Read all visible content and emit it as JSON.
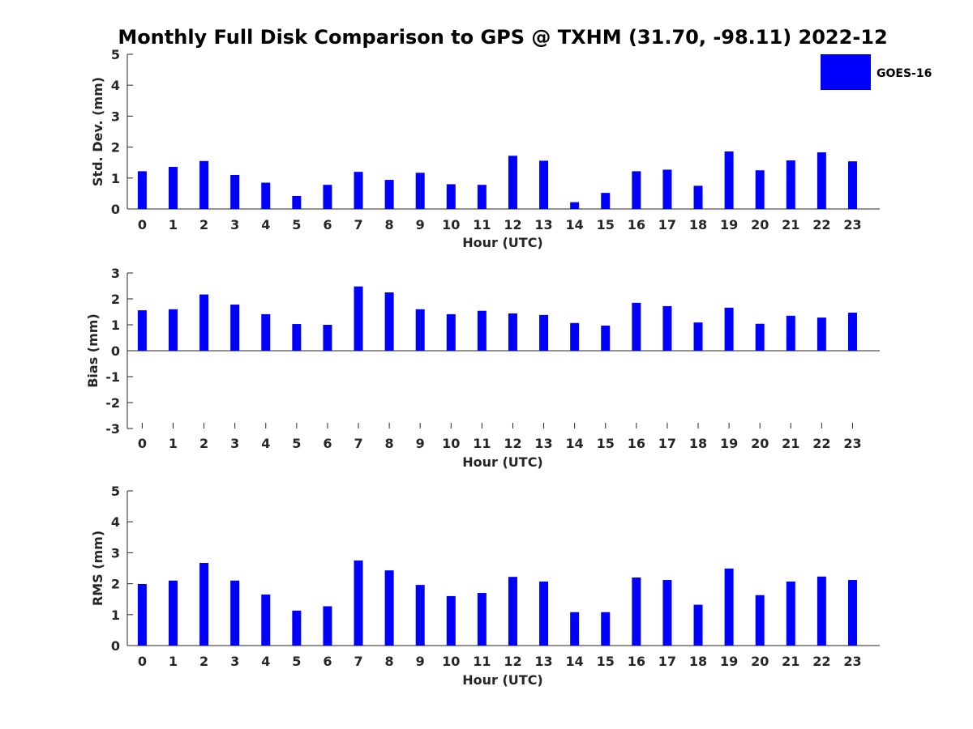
{
  "title": "Monthly Full Disk Comparison to GPS @ TXHM (31.70, -98.11) 2022-12",
  "legend": {
    "label": "GOES-16",
    "color": "#0000ff",
    "placement": "top-right"
  },
  "chart_data": [
    {
      "type": "bar",
      "title": "",
      "xlabel": "Hour (UTC)",
      "ylabel": "Std. Dev. (mm)",
      "ylim": [
        0,
        5
      ],
      "yticks": [
        "0",
        "1",
        "2",
        "3",
        "4",
        "5"
      ],
      "categories": [
        "0",
        "1",
        "2",
        "3",
        "4",
        "5",
        "6",
        "7",
        "8",
        "9",
        "10",
        "11",
        "12",
        "13",
        "14",
        "15",
        "16",
        "17",
        "18",
        "19",
        "20",
        "21",
        "22",
        "23"
      ],
      "series": [
        {
          "name": "GOES-16",
          "color": "#0000ff",
          "values": [
            1.22,
            1.36,
            1.55,
            1.1,
            0.85,
            0.42,
            0.78,
            1.2,
            0.94,
            1.17,
            0.8,
            0.78,
            1.72,
            1.56,
            0.22,
            0.52,
            1.22,
            1.27,
            0.75,
            1.86,
            1.25,
            1.57,
            1.83,
            1.54
          ]
        }
      ],
      "grid": false
    },
    {
      "type": "bar",
      "title": "",
      "xlabel": "Hour (UTC)",
      "ylabel": "Bias (mm)",
      "ylim": [
        -3,
        3
      ],
      "yticks": [
        "-3",
        "-2",
        "-1",
        "0",
        "1",
        "2",
        "3"
      ],
      "categories": [
        "0",
        "1",
        "2",
        "3",
        "4",
        "5",
        "6",
        "7",
        "8",
        "9",
        "10",
        "11",
        "12",
        "13",
        "14",
        "15",
        "16",
        "17",
        "18",
        "19",
        "20",
        "21",
        "22",
        "23"
      ],
      "series": [
        {
          "name": "GOES-16",
          "color": "#0000ff",
          "values": [
            1.56,
            1.6,
            2.17,
            1.78,
            1.41,
            1.03,
            1.0,
            2.48,
            2.25,
            1.6,
            1.41,
            1.54,
            1.44,
            1.38,
            1.07,
            0.97,
            1.85,
            1.72,
            1.09,
            1.66,
            1.04,
            1.35,
            1.28,
            1.47
          ]
        }
      ],
      "grid": false
    },
    {
      "type": "bar",
      "title": "",
      "xlabel": "Hour (UTC)",
      "ylabel": "RMS (mm)",
      "ylim": [
        0,
        5
      ],
      "yticks": [
        "0",
        "1",
        "2",
        "3",
        "4",
        "5"
      ],
      "categories": [
        "0",
        "1",
        "2",
        "3",
        "4",
        "5",
        "6",
        "7",
        "8",
        "9",
        "10",
        "11",
        "12",
        "13",
        "14",
        "15",
        "16",
        "17",
        "18",
        "19",
        "20",
        "21",
        "22",
        "23"
      ],
      "series": [
        {
          "name": "GOES-16",
          "color": "#0000ff",
          "values": [
            1.99,
            2.1,
            2.67,
            2.1,
            1.65,
            1.13,
            1.27,
            2.75,
            2.43,
            1.96,
            1.6,
            1.7,
            2.22,
            2.07,
            1.08,
            1.08,
            2.2,
            2.12,
            1.32,
            2.49,
            1.63,
            2.07,
            2.23,
            2.12
          ]
        }
      ],
      "grid": false
    }
  ]
}
